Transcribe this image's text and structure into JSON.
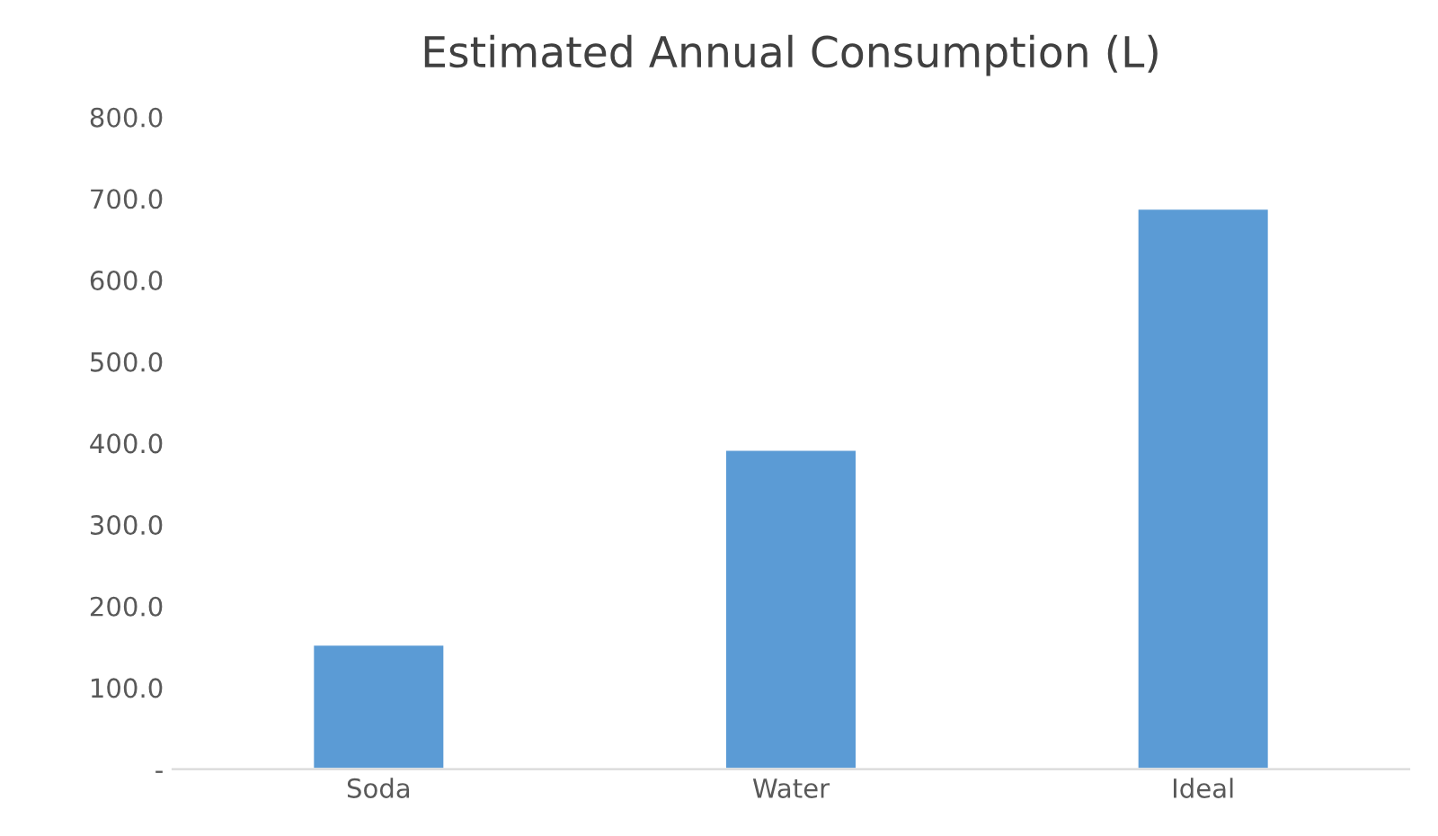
{
  "chart_data": {
    "type": "bar",
    "title": "Estimated Annual Consumption (L)",
    "categories": [
      "Soda",
      "Water",
      "Ideal"
    ],
    "values": [
      153,
      392,
      688
    ],
    "color": "#5b9bd5",
    "ylim": [
      0,
      800
    ],
    "yticks": [
      {
        "value": 0,
        "label": "-"
      },
      {
        "value": 100,
        "label": "100.0"
      },
      {
        "value": 200,
        "label": "200.0"
      },
      {
        "value": 300,
        "label": "300.0"
      },
      {
        "value": 400,
        "label": "400.0"
      },
      {
        "value": 500,
        "label": "500.0"
      },
      {
        "value": 600,
        "label": "600.0"
      },
      {
        "value": 700,
        "label": "700.0"
      },
      {
        "value": 800,
        "label": "800.0"
      }
    ],
    "grid": false,
    "legend": false
  }
}
